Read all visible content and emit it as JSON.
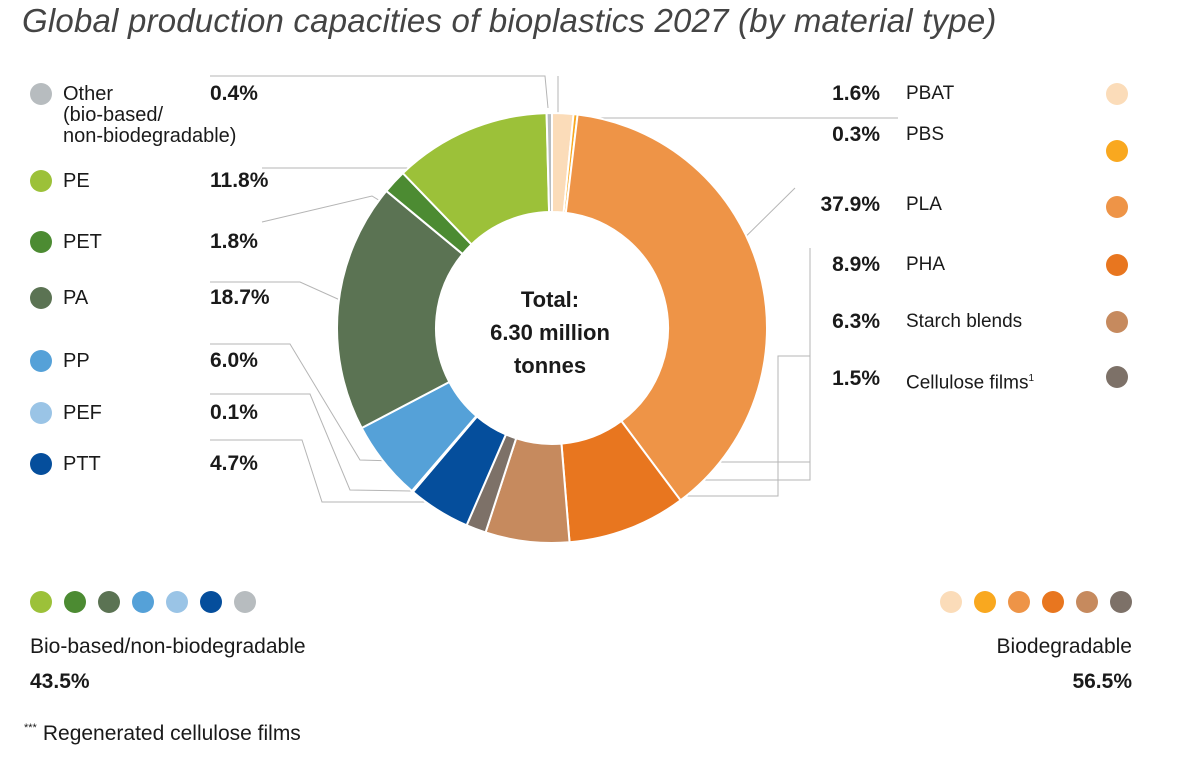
{
  "chart_data": {
    "type": "pie",
    "variant": "donut",
    "title": "Global production capacities of bioplastics 2027 (by material type)",
    "center_label": [
      "Total:",
      "6.30 million",
      "tonnes"
    ],
    "unit": "%",
    "slices": [
      {
        "name": "PBAT",
        "value": 1.6,
        "label": "1.6%",
        "color": "#fbdcb9",
        "group": "biodegradable"
      },
      {
        "name": "PBS",
        "value": 0.3,
        "label": "0.3%",
        "color": "#f9a81f",
        "group": "biodegradable"
      },
      {
        "name": "PLA",
        "value": 37.9,
        "label": "37.9%",
        "color": "#ee9447",
        "group": "biodegradable"
      },
      {
        "name": "PHA",
        "value": 8.9,
        "label": "8.9%",
        "color": "#e8761f",
        "group": "biodegradable"
      },
      {
        "name": "Starch blends",
        "value": 6.3,
        "label": "6.3%",
        "color": "#c68a5e",
        "group": "biodegradable"
      },
      {
        "name": "Cellulose films",
        "value": 1.5,
        "label": "1.5%",
        "color": "#7d7168",
        "group": "biodegradable",
        "footnote_mark": "1"
      },
      {
        "name": "PTT",
        "value": 4.7,
        "label": "4.7%",
        "color": "#054e9c",
        "group": "bio-based"
      },
      {
        "name": "PEF",
        "value": 0.1,
        "label": "0.1%",
        "color": "#9ac4e6",
        "group": "bio-based"
      },
      {
        "name": "PP",
        "value": 6.0,
        "label": "6.0%",
        "color": "#55a1d8",
        "group": "bio-based"
      },
      {
        "name": "PA",
        "value": 18.7,
        "label": "18.7%",
        "color": "#5b7353",
        "group": "bio-based"
      },
      {
        "name": "PET",
        "value": 1.8,
        "label": "1.8%",
        "color": "#4c8b32",
        "group": "bio-based"
      },
      {
        "name": "PE",
        "value": 11.8,
        "label": "11.8%",
        "color": "#9cc139",
        "group": "bio-based"
      },
      {
        "name": "Other (bio-based/ non-biodegradable)",
        "value": 0.4,
        "label": "0.4%",
        "color": "#b7bcbf",
        "group": "bio-based"
      }
    ],
    "left_legend": [
      {
        "name_lines": [
          "Other",
          "(bio-based/",
          "non-biodegradable)"
        ],
        "label": "0.4%",
        "color": "#b7bcbf"
      },
      {
        "name_lines": [
          "PE"
        ],
        "label": "11.8%",
        "color": "#9cc139"
      },
      {
        "name_lines": [
          "PET"
        ],
        "label": "1.8%",
        "color": "#4c8b32"
      },
      {
        "name_lines": [
          "PA"
        ],
        "label": "18.7%",
        "color": "#5b7353"
      },
      {
        "name_lines": [
          "PP"
        ],
        "label": "6.0%",
        "color": "#55a1d8"
      },
      {
        "name_lines": [
          "PEF"
        ],
        "label": "0.1%",
        "color": "#9ac4e6"
      },
      {
        "name_lines": [
          "PTT"
        ],
        "label": "4.7%",
        "color": "#054e9c"
      }
    ],
    "right_legend": [
      {
        "name": "PBAT",
        "label": "1.6%",
        "color": "#fbdcb9"
      },
      {
        "name": "PBS",
        "label": "0.3%",
        "color": "#f9a81f"
      },
      {
        "name": "PLA",
        "label": "37.9%",
        "color": "#ee9447"
      },
      {
        "name": "PHA",
        "label": "8.9%",
        "color": "#e8761f"
      },
      {
        "name": "Starch blends",
        "label": "6.3%",
        "color": "#c68a5e"
      },
      {
        "name": "Cellulose films",
        "sup": "1",
        "label": "1.5%",
        "color": "#7d7168"
      }
    ],
    "groups": [
      {
        "name": "Bio-based/non-biodegradable",
        "total": "43.5%",
        "colors": [
          "#9cc139",
          "#4c8b32",
          "#5b7353",
          "#55a1d8",
          "#9ac4e6",
          "#054e9c",
          "#b7bcbf"
        ]
      },
      {
        "name": "Biodegradable",
        "total": "56.5%",
        "colors": [
          "#fbdcb9",
          "#f9a81f",
          "#ee9447",
          "#e8761f",
          "#c68a5e",
          "#7d7168"
        ]
      }
    ]
  },
  "footnote": {
    "mark": "***",
    "text": "Regenerated cellulose films"
  }
}
